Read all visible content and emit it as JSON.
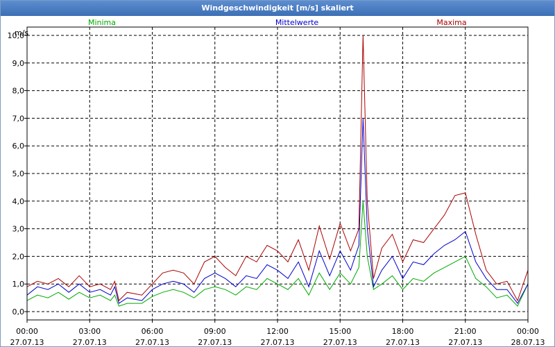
{
  "window": {
    "title": "Windgeschwindigkeit [m/s] skaliert"
  },
  "chart_data": {
    "type": "line",
    "title": "Windgeschwindigkeit [m/s] skaliert",
    "ylabel": "m/s",
    "ylim": [
      -0.3,
      10.3
    ],
    "y_ticks": [
      "0,0",
      "1,0",
      "2,0",
      "3,0",
      "4,0",
      "5,0",
      "6,0",
      "7,0",
      "8,0",
      "9,0",
      "10,0"
    ],
    "xlim": [
      0,
      24
    ],
    "x_ticks": [
      {
        "time": "00:00",
        "date": "27.07.13"
      },
      {
        "time": "03:00",
        "date": "27.07.13"
      },
      {
        "time": "06:00",
        "date": "27.07.13"
      },
      {
        "time": "09:00",
        "date": "27.07.13"
      },
      {
        "time": "12:00",
        "date": "27.07.13"
      },
      {
        "time": "15:00",
        "date": "27.07.13"
      },
      {
        "time": "18:00",
        "date": "27.07.13"
      },
      {
        "time": "21:00",
        "date": "27.07.13"
      },
      {
        "time": "00:00",
        "date": "28.07.13"
      }
    ],
    "grid": true,
    "legend_placement": "top",
    "series": [
      {
        "name": "Minima",
        "color": "#00aa00",
        "x": [
          0,
          0.5,
          1,
          1.5,
          2,
          2.5,
          3,
          3.5,
          4,
          4.2,
          4.4,
          4.8,
          5.5,
          6,
          6.5,
          7,
          7.5,
          8,
          8.5,
          9,
          9.5,
          10,
          10.5,
          11,
          11.5,
          12,
          12.5,
          13,
          13.5,
          14,
          14.5,
          15,
          15.5,
          15.9,
          16.1,
          16.3,
          16.6,
          17,
          17.5,
          18,
          18.5,
          19,
          19.5,
          20,
          20.5,
          21,
          21.5,
          22,
          22.5,
          23,
          23.5,
          24
        ],
        "y": [
          0.4,
          0.6,
          0.5,
          0.7,
          0.45,
          0.7,
          0.5,
          0.6,
          0.4,
          0.6,
          0.2,
          0.3,
          0.3,
          0.55,
          0.7,
          0.8,
          0.7,
          0.5,
          0.8,
          0.9,
          0.8,
          0.6,
          0.9,
          0.8,
          1.2,
          1.0,
          0.8,
          1.2,
          0.6,
          1.4,
          0.8,
          1.4,
          1.0,
          1.6,
          4.0,
          2.0,
          0.8,
          1.0,
          1.3,
          0.8,
          1.2,
          1.1,
          1.4,
          1.6,
          1.8,
          2.0,
          1.2,
          0.9,
          0.5,
          0.6,
          0.2,
          1.0
        ]
      },
      {
        "name": "Mittelwerte",
        "color": "#0000cc",
        "x": [
          0,
          0.5,
          1,
          1.5,
          2,
          2.5,
          3,
          3.5,
          4,
          4.2,
          4.4,
          4.8,
          5.5,
          6,
          6.5,
          7,
          7.5,
          8,
          8.5,
          9,
          9.5,
          10,
          10.5,
          11,
          11.5,
          12,
          12.5,
          13,
          13.5,
          14,
          14.5,
          15,
          15.5,
          15.9,
          16.1,
          16.3,
          16.6,
          17,
          17.5,
          18,
          18.5,
          19,
          19.5,
          20,
          20.5,
          21,
          21.5,
          22,
          22.5,
          23,
          23.5,
          24
        ],
        "y": [
          0.6,
          0.9,
          0.8,
          1.0,
          0.7,
          1.0,
          0.7,
          0.8,
          0.6,
          0.9,
          0.3,
          0.5,
          0.4,
          0.8,
          1.0,
          1.1,
          1.0,
          0.7,
          1.2,
          1.4,
          1.2,
          0.9,
          1.3,
          1.2,
          1.7,
          1.5,
          1.2,
          1.8,
          0.9,
          2.2,
          1.3,
          2.2,
          1.5,
          2.4,
          7.0,
          3.0,
          0.9,
          1.5,
          2.0,
          1.2,
          1.8,
          1.7,
          2.1,
          2.4,
          2.6,
          2.9,
          1.8,
          1.2,
          0.8,
          0.8,
          0.3,
          1.0
        ]
      },
      {
        "name": "Maxima",
        "color": "#aa0000",
        "x": [
          0,
          0.5,
          1,
          1.5,
          2,
          2.5,
          3,
          3.5,
          4,
          4.2,
          4.4,
          4.8,
          5.5,
          6,
          6.5,
          7,
          7.5,
          8,
          8.5,
          9,
          9.5,
          10,
          10.5,
          11,
          11.5,
          12,
          12.5,
          13,
          13.5,
          14,
          14.5,
          15,
          15.5,
          15.9,
          16.1,
          16.3,
          16.6,
          17,
          17.5,
          18,
          18.5,
          19,
          19.5,
          20,
          20.5,
          21,
          21.5,
          22,
          22.5,
          23,
          23.5,
          24
        ],
        "y": [
          0.9,
          1.1,
          1.0,
          1.2,
          0.9,
          1.3,
          0.9,
          1.0,
          0.8,
          1.1,
          0.4,
          0.7,
          0.6,
          1.0,
          1.4,
          1.5,
          1.4,
          1.0,
          1.8,
          2.0,
          1.6,
          1.3,
          2.0,
          1.8,
          2.4,
          2.2,
          1.8,
          2.6,
          1.5,
          3.1,
          1.9,
          3.2,
          2.2,
          3.0,
          10.0,
          4.0,
          1.2,
          2.3,
          2.8,
          1.8,
          2.6,
          2.5,
          3.0,
          3.5,
          4.2,
          4.3,
          2.8,
          1.5,
          1.0,
          1.1,
          0.4,
          1.5
        ]
      }
    ]
  }
}
